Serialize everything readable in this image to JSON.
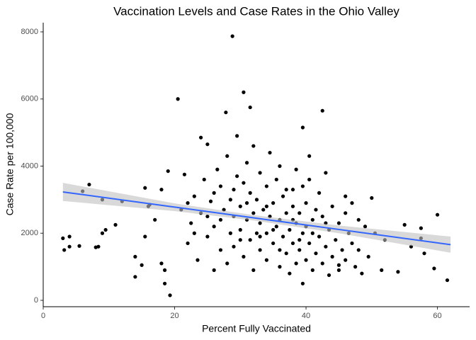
{
  "chart_data": {
    "type": "scatter",
    "title": "Vaccination Levels and Case Rates in the Ohio Valley",
    "x_label": "Percent Fully Vaccinated",
    "y_label": "Case Rate per 100,000",
    "xlim": [
      0,
      64.9
    ],
    "ylim": [
      -190,
      8274
    ],
    "xticks": [
      0,
      20,
      40,
      60
    ],
    "yticks": [
      0,
      2000,
      4000,
      6000,
      8000
    ],
    "grid": false,
    "series": [
      {
        "color": "#000000",
        "x": [
          3,
          3.2,
          4,
          4,
          5.5,
          6,
          7,
          8,
          8.4,
          9,
          9.5,
          9,
          11,
          12,
          14,
          14,
          15,
          15.5,
          16,
          16.2,
          15.5,
          17,
          18,
          18.5,
          18.5,
          19.3,
          20.5,
          19,
          18,
          28.8,
          30.5,
          27.8,
          31.5,
          42.5,
          39.5,
          46,
          50,
          52,
          54,
          55,
          56,
          57.5,
          58,
          57.5,
          59.5,
          60,
          61.5,
          48.5,
          50.5,
          51.5,
          45,
          43.5,
          39.5,
          38,
          40.5,
          21,
          21.5,
          22,
          22.5,
          23,
          23.5,
          24,
          24,
          24.5,
          25,
          25,
          25.5,
          26,
          26,
          26.5,
          27,
          27,
          27.5,
          28,
          28,
          28.5,
          28.5,
          29,
          29,
          29.5,
          29.5,
          30,
          30,
          30.5,
          30.5,
          31,
          31,
          31.5,
          31.5,
          32,
          32,
          32,
          32.5,
          32.5,
          33,
          33,
          33,
          33.5,
          34,
          34,
          34,
          34.5,
          34.5,
          35,
          35,
          35.5,
          35.5,
          36,
          36,
          36,
          36.5,
          36.5,
          37,
          37,
          37.5,
          37.5,
          38,
          38,
          38.5,
          38.5,
          38.5,
          39,
          39,
          39.5,
          39.5,
          40,
          40,
          40,
          40.5,
          40.5,
          41,
          41,
          41.5,
          41.5,
          42,
          42,
          42.5,
          42.5,
          43,
          43,
          43.5,
          44,
          44,
          44.5,
          45,
          45,
          45.5,
          46,
          46,
          46.5,
          47,
          47,
          47.5,
          48,
          48,
          49,
          49.5,
          27,
          29,
          31,
          33,
          35,
          37,
          39,
          41,
          43,
          25,
          23,
          22,
          26,
          30,
          34,
          36,
          38
        ],
        "values": [
          1850,
          1500,
          1900,
          1600,
          1620,
          3250,
          3450,
          1580,
          1600,
          2000,
          2100,
          3000,
          2250,
          2950,
          1300,
          700,
          1050,
          1900,
          2800,
          2850,
          3350,
          2400,
          1100,
          900,
          500,
          150,
          6000,
          3850,
          3300,
          7870,
          6200,
          5600,
          5750,
          5650,
          5150,
          3100,
          3050,
          1800,
          850,
          2250,
          1600,
          2150,
          1400,
          1850,
          950,
          2550,
          600,
          800,
          2000,
          900,
          1050,
          750,
          500,
          3300,
          4300,
          2700,
          3750,
          1700,
          2300,
          3100,
          1200,
          4850,
          2600,
          3600,
          1900,
          4650,
          2950,
          900,
          2200,
          3900,
          1500,
          3400,
          2700,
          4300,
          1100,
          2000,
          3000,
          2500,
          1600,
          3700,
          4900,
          2100,
          2800,
          1300,
          3500,
          2400,
          4100,
          1800,
          3200,
          900,
          2600,
          4600,
          2000,
          3000,
          1500,
          2300,
          3800,
          2700,
          1200,
          2000,
          3400,
          2500,
          4400,
          1700,
          2900,
          2200,
          3600,
          1000,
          2400,
          4000,
          1900,
          3100,
          1400,
          2600,
          800,
          2100,
          1700,
          2800,
          1100,
          2300,
          3900,
          1500,
          2600,
          2000,
          3400,
          1200,
          2200,
          2900,
          1700,
          3600,
          900,
          2400,
          1400,
          2700,
          1900,
          3200,
          1100,
          2500,
          1600,
          3800,
          2100,
          1300,
          2800,
          1800,
          2300,
          900,
          1500,
          2600,
          1200,
          2000,
          1700,
          2900,
          1000,
          2400,
          1500,
          2200,
          1300,
          2400,
          3300,
          2900,
          1900,
          2100,
          3300,
          1800,
          2000,
          2300,
          2500,
          2000,
          2900,
          3200,
          1800,
          2800,
          1500,
          2400
        ]
      }
    ],
    "trend": {
      "color": "#3366ff",
      "band_color": "#bfbfbf",
      "x": [
        3,
        20,
        32,
        45,
        62
      ],
      "values": [
        3230,
        2778,
        2458,
        2112,
        1660
      ],
      "lower": [
        2960,
        2660,
        2380,
        2000,
        1420
      ],
      "upper": [
        3500,
        2890,
        2540,
        2230,
        1900
      ]
    }
  }
}
